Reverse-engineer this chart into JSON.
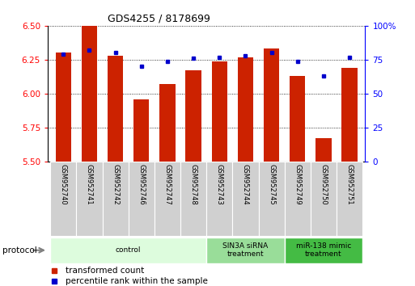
{
  "title": "GDS4255 / 8178699",
  "samples": [
    "GSM952740",
    "GSM952741",
    "GSM952742",
    "GSM952746",
    "GSM952747",
    "GSM952748",
    "GSM952743",
    "GSM952744",
    "GSM952745",
    "GSM952749",
    "GSM952750",
    "GSM952751"
  ],
  "transformed_count": [
    6.3,
    6.5,
    6.28,
    5.96,
    6.07,
    6.17,
    6.24,
    6.27,
    6.33,
    6.13,
    5.67,
    6.19
  ],
  "percentile_rank": [
    79,
    82,
    80,
    70,
    74,
    76,
    77,
    78,
    80,
    74,
    63,
    77
  ],
  "ylim_left": [
    5.5,
    6.5
  ],
  "ylim_right": [
    0,
    100
  ],
  "yticks_left": [
    5.5,
    5.75,
    6.0,
    6.25,
    6.5
  ],
  "yticks_right": [
    0,
    25,
    50,
    75,
    100
  ],
  "ytick_labels_right": [
    "0",
    "25",
    "50",
    "75",
    "100%"
  ],
  "bar_color": "#cc2200",
  "dot_color": "#0000cc",
  "groups": [
    {
      "label": "control",
      "start": 0,
      "end": 6,
      "color": "#ddfcdd"
    },
    {
      "label": "SIN3A siRNA\ntreatment",
      "start": 6,
      "end": 9,
      "color": "#99dd99"
    },
    {
      "label": "miR-138 mimic\ntreatment",
      "start": 9,
      "end": 12,
      "color": "#44bb44"
    }
  ],
  "protocol_label": "protocol",
  "legend_bar_label": "transformed count",
  "legend_dot_label": "percentile rank within the sample",
  "bar_width": 0.6,
  "baseline": 5.5
}
